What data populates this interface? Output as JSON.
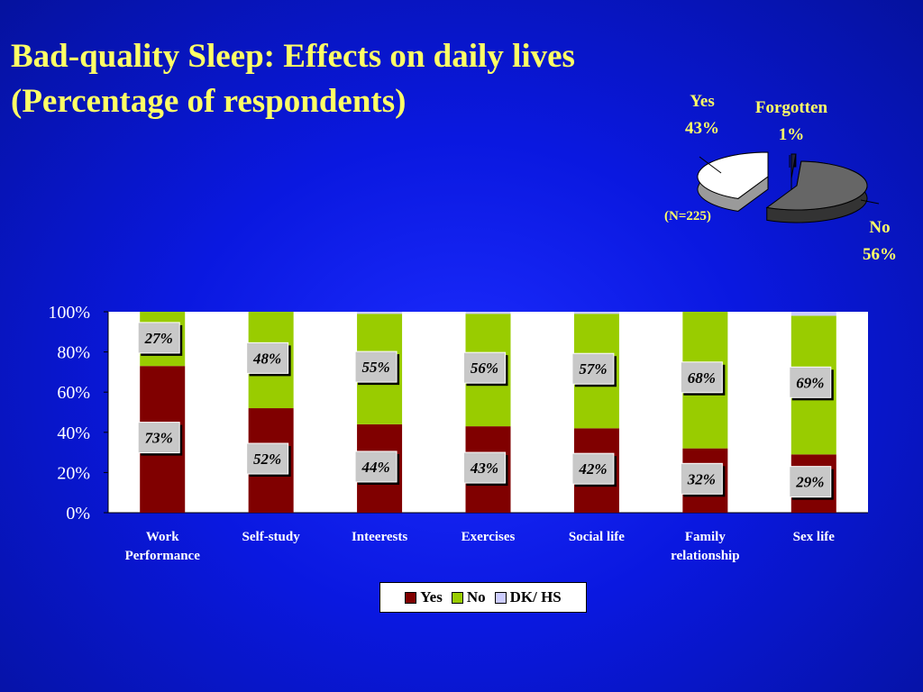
{
  "slide": {
    "title_line1": "Bad-quality Sleep: Effects on daily lives",
    "title_line2": "(Percentage of respondents)"
  },
  "chart_data": [
    {
      "type": "pie",
      "sample_label": "(N=225)",
      "slices": [
        {
          "name": "Yes",
          "label": "43%",
          "value": 43,
          "color": "#ffffff"
        },
        {
          "name": "Forgotten",
          "label": "1%",
          "value": 1,
          "color": "#222244"
        },
        {
          "name": "No",
          "label": "56%",
          "value": 56,
          "color": "#666666"
        }
      ]
    },
    {
      "type": "bar",
      "stacked": true,
      "categories": [
        "Work Performance",
        "Self-study",
        "Inteerests",
        "Exercises",
        "Social life",
        "Family relationship",
        "Sex life"
      ],
      "series": [
        {
          "name": "Yes",
          "color": "#800000",
          "values": [
            73,
            52,
            44,
            43,
            42,
            32,
            29
          ],
          "labels": [
            "73%",
            "52%",
            "44%",
            "43%",
            "42%",
            "32%",
            "29%"
          ]
        },
        {
          "name": "No",
          "color": "#99cc00",
          "values": [
            27,
            48,
            55,
            56,
            57,
            68,
            69
          ],
          "labels": [
            "27%",
            "48%",
            "55%",
            "56%",
            "57%",
            "68%",
            "69%"
          ]
        },
        {
          "name": "DK/ HS",
          "color": "#ccccff",
          "values": [
            0,
            0,
            1,
            1,
            1,
            0,
            2
          ]
        }
      ],
      "yticks": [
        "0%",
        "20%",
        "40%",
        "60%",
        "80%",
        "100%"
      ],
      "ylim": [
        0,
        100
      ],
      "legend_position": "bottom",
      "grid": false
    }
  ]
}
